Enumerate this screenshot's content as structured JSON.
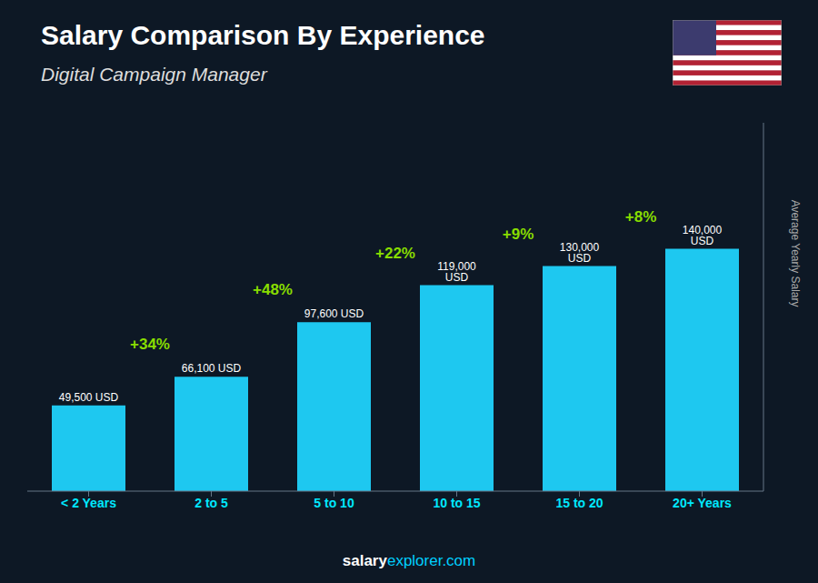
{
  "chart_data": {
    "type": "bar",
    "title": "Salary Comparison By Experience",
    "subtitle": "Digital Campaign Manager",
    "y_label": "Average Yearly Salary",
    "categories": [
      "< 2 Years",
      "2 to 5",
      "5 to 10",
      "10 to 15",
      "15 to 20",
      "20+ Years"
    ],
    "values": [
      49500,
      66100,
      97600,
      119000,
      130000,
      140000
    ],
    "value_labels": [
      "49,500 USD",
      "66,100 USD",
      "97,600 USD",
      "119,000 USD",
      "130,000 USD",
      "140,000 USD"
    ],
    "data_labels": true,
    "annotations": [
      "+34%",
      "+48%",
      "+22%",
      "+9%",
      "+8%"
    ],
    "footer": [
      "salary",
      "explorer.com"
    ],
    "color": "#1ec8f0",
    "ylim": [
      0,
      212800
    ],
    "grid": false,
    "tick_labels": "x"
  }
}
